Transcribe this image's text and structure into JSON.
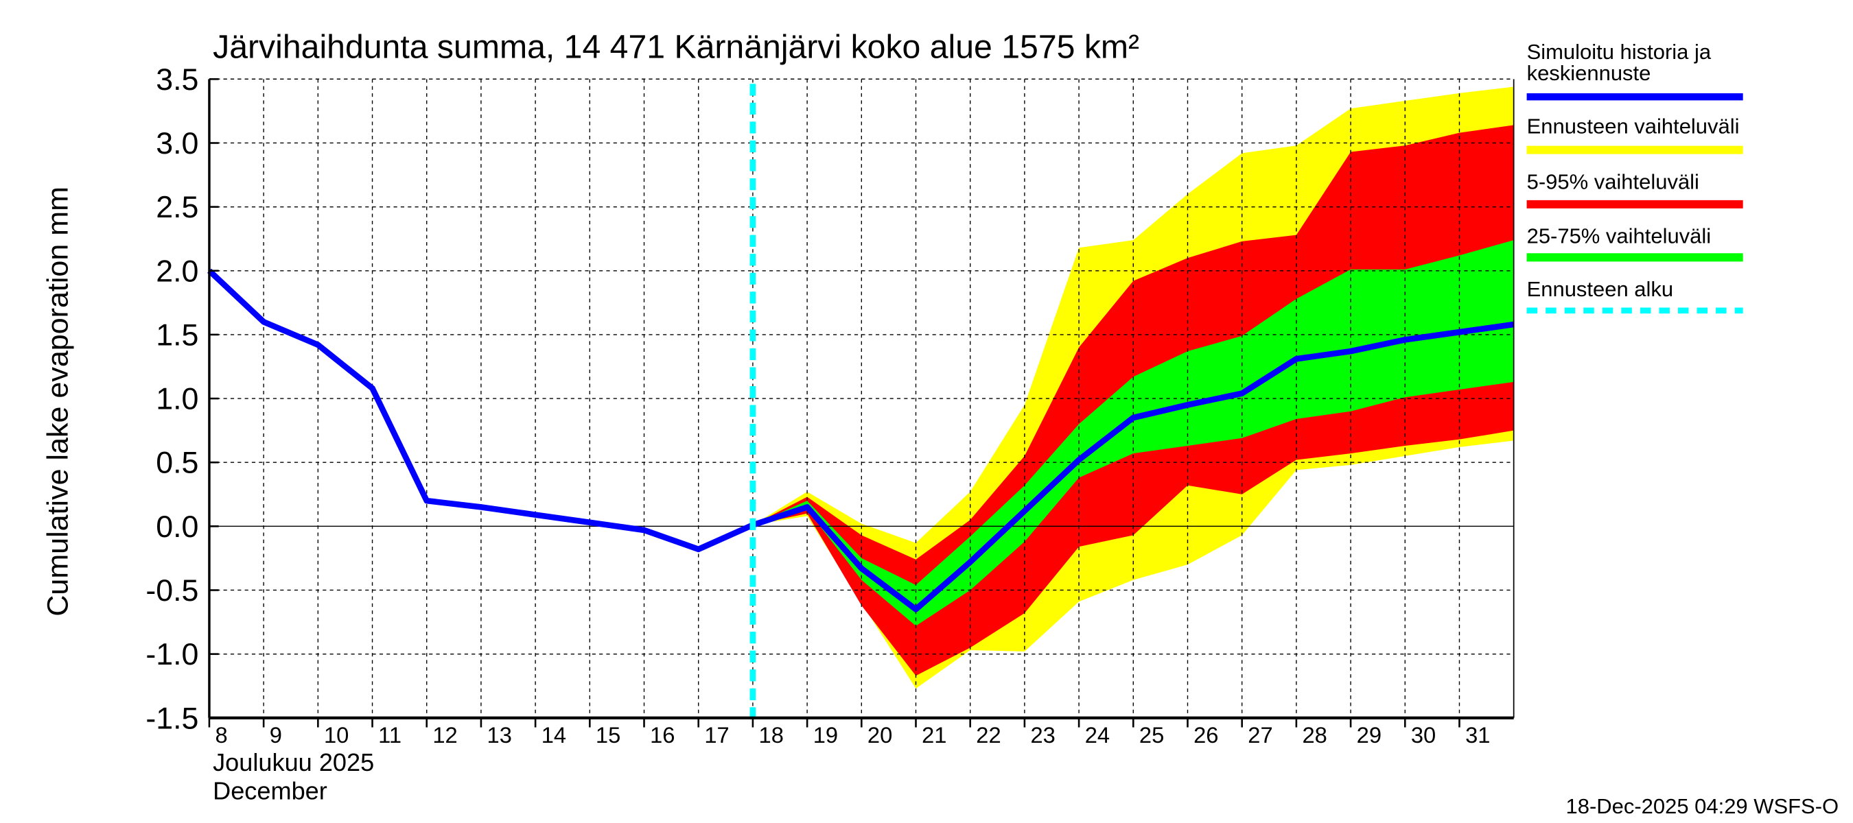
{
  "chart_data": {
    "type": "area",
    "title": "Järvihaihdunta summa, 14 471 Kärnänjärvi koko alue 1575 km²",
    "ylabel": "Cumulative lake evaporation   mm",
    "xlabel_line1": "Joulukuu  2025",
    "xlabel_line2": "December",
    "footer": "18-Dec-2025 04:29 WSFS-O",
    "ylim": [
      -1.5,
      3.5
    ],
    "xlim": [
      8,
      32
    ],
    "yticks": [
      3.5,
      3.0,
      2.5,
      2.0,
      1.5,
      1.0,
      0.5,
      0.0,
      -0.5,
      -1.0,
      -1.5
    ],
    "ytick_labels": [
      "3.5",
      "3.0",
      "2.5",
      "2.0",
      "1.5",
      "1.0",
      "0.5",
      "0.0",
      "-0.5",
      "-1.0",
      "-1.5"
    ],
    "xtick_labels": [
      "8",
      "9",
      "10",
      "11",
      "12",
      "13",
      "14",
      "15",
      "16",
      "17",
      "18",
      "19",
      "20",
      "21",
      "22",
      "23",
      "24",
      "25",
      "26",
      "27",
      "28",
      "29",
      "30",
      "31"
    ],
    "grid": true,
    "forecast_start": 18,
    "x": [
      8,
      9,
      10,
      11,
      12,
      13,
      14,
      15,
      16,
      17,
      18,
      19,
      20,
      21,
      22,
      23,
      24,
      25,
      26,
      27,
      28,
      29,
      30,
      31,
      32
    ],
    "median": [
      2.0,
      1.6,
      1.42,
      1.08,
      0.2,
      0.15,
      0.09,
      0.03,
      -0.03,
      -0.18,
      0.01,
      0.15,
      -0.33,
      -0.65,
      -0.28,
      0.12,
      0.52,
      0.85,
      0.95,
      1.04,
      1.31,
      1.37,
      1.46,
      1.52,
      1.58
    ],
    "band_x": [
      18,
      19,
      20,
      21,
      22,
      23,
      24,
      25,
      26,
      27,
      28,
      29,
      30,
      31,
      32
    ],
    "bands": {
      "range": {
        "upper": [
          0.01,
          0.27,
          0.02,
          -0.13,
          0.27,
          0.95,
          2.18,
          2.24,
          2.6,
          2.92,
          2.98,
          3.27,
          3.33,
          3.39,
          3.44
        ],
        "lower": [
          0.01,
          0.08,
          -0.6,
          -1.27,
          -0.97,
          -0.98,
          -0.59,
          -0.42,
          -0.3,
          -0.07,
          0.44,
          0.48,
          0.55,
          0.62,
          0.67
        ]
      },
      "p5_95": {
        "upper": [
          0.01,
          0.23,
          -0.07,
          -0.26,
          0.05,
          0.55,
          1.4,
          1.92,
          2.1,
          2.23,
          2.28,
          2.93,
          2.98,
          3.08,
          3.14
        ],
        "lower": [
          0.01,
          0.1,
          -0.62,
          -1.17,
          -0.95,
          -0.68,
          -0.16,
          -0.07,
          0.32,
          0.25,
          0.52,
          0.57,
          0.63,
          0.68,
          0.75
        ]
      },
      "p25_75": {
        "upper": [
          0.01,
          0.2,
          -0.25,
          -0.46,
          -0.08,
          0.32,
          0.8,
          1.17,
          1.37,
          1.49,
          1.78,
          2.01,
          2.01,
          2.12,
          2.24
        ],
        "lower": [
          0.01,
          0.13,
          -0.42,
          -0.78,
          -0.5,
          -0.12,
          0.38,
          0.57,
          0.63,
          0.69,
          0.84,
          0.9,
          1.01,
          1.07,
          1.13
        ]
      }
    },
    "legend": [
      {
        "label_line1": "Simuloitu historia ja",
        "label_line2": "keskiennuste",
        "color": "#0000ff",
        "style": "solid"
      },
      {
        "label": "Ennusteen vaihteluväli",
        "color": "#ffff00",
        "style": "solid"
      },
      {
        "label": "5-95% vaihteluväli",
        "color": "#ff0000",
        "style": "solid"
      },
      {
        "label": "25-75% vaihteluväli",
        "color": "#00ff00",
        "style": "solid"
      },
      {
        "label": "Ennusteen alku",
        "color": "#00ffff",
        "style": "dashed"
      }
    ],
    "legend_position": "right"
  }
}
